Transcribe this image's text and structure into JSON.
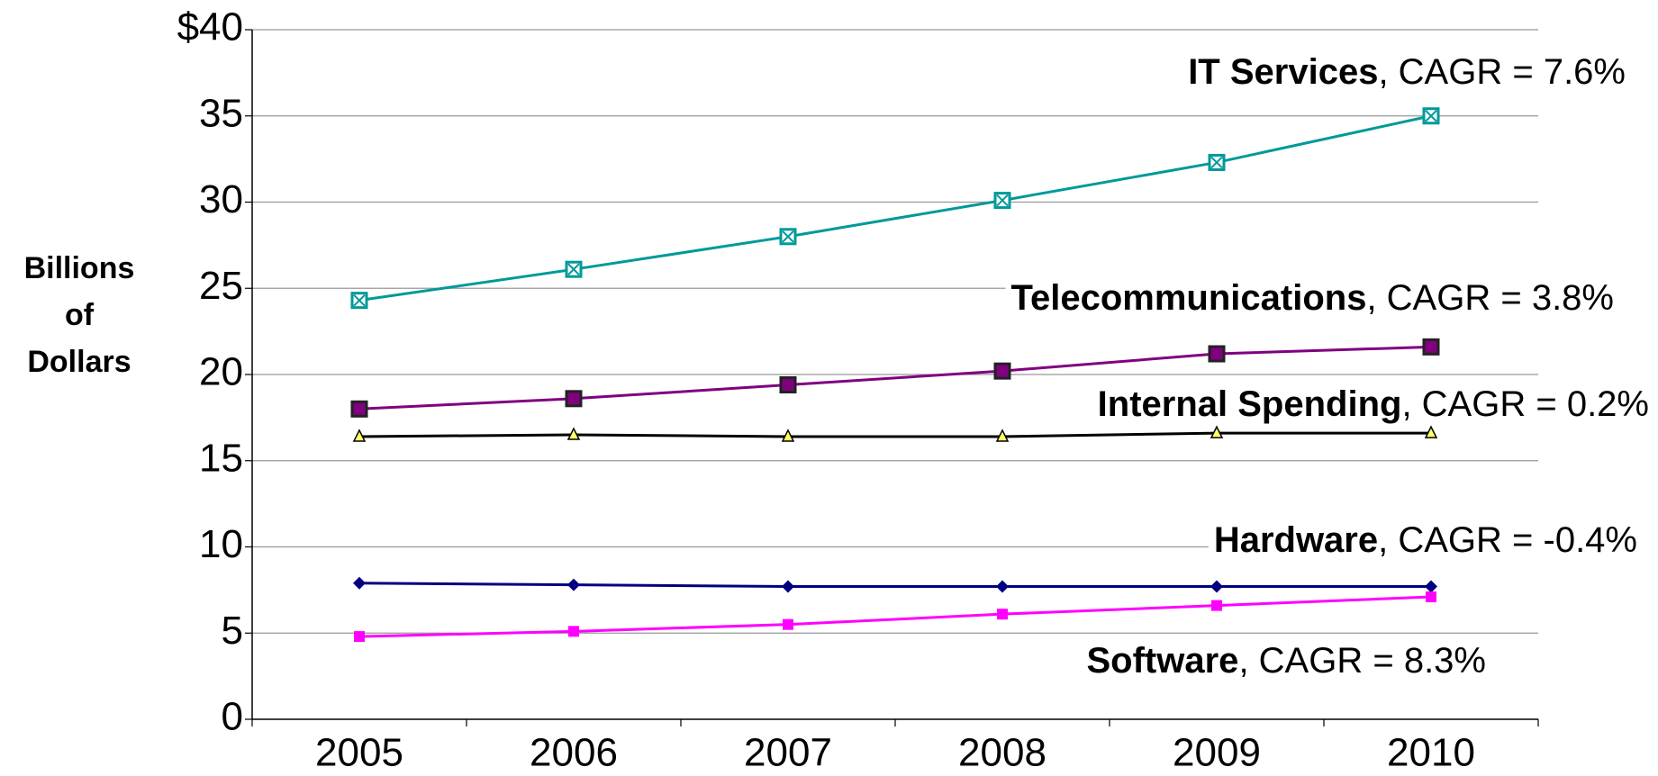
{
  "chart_data": {
    "type": "line",
    "y_label": "Billions of Dollars",
    "categories": [
      "2005",
      "2006",
      "2007",
      "2008",
      "2009",
      "2010"
    ],
    "ylim": [
      0,
      40
    ],
    "yticks": [
      0,
      5,
      10,
      15,
      20,
      25,
      30,
      35,
      {
        "value": 40,
        "label": "$40"
      }
    ],
    "grid": true,
    "series": [
      {
        "name": "IT Services",
        "annotation": ", CAGR = 7.6%",
        "color": "#009999",
        "marker": "square-x",
        "values": [
          24.3,
          26.1,
          28.0,
          30.1,
          32.3,
          35.0
        ]
      },
      {
        "name": "Telecommunications",
        "annotation": ", CAGR = 3.8%",
        "color": "#800080",
        "marker": "square-dark",
        "values": [
          18.0,
          18.6,
          19.4,
          20.2,
          21.2,
          21.6
        ]
      },
      {
        "name": "Internal Spending",
        "annotation": ", CAGR = 0.2%",
        "color": "#000000",
        "marker": "triangle",
        "values": [
          16.4,
          16.5,
          16.4,
          16.4,
          16.6,
          16.6
        ]
      },
      {
        "name": "Hardware",
        "annotation": ", CAGR = -0.4%",
        "color": "#000080",
        "marker": "diamond",
        "values": [
          7.9,
          7.8,
          7.7,
          7.7,
          7.7,
          7.7
        ]
      },
      {
        "name": "Software",
        "annotation": ", CAGR = 8.3%",
        "color": "#ff00ff",
        "marker": "square",
        "values": [
          4.8,
          5.1,
          5.5,
          6.1,
          6.6,
          7.1
        ]
      }
    ]
  }
}
